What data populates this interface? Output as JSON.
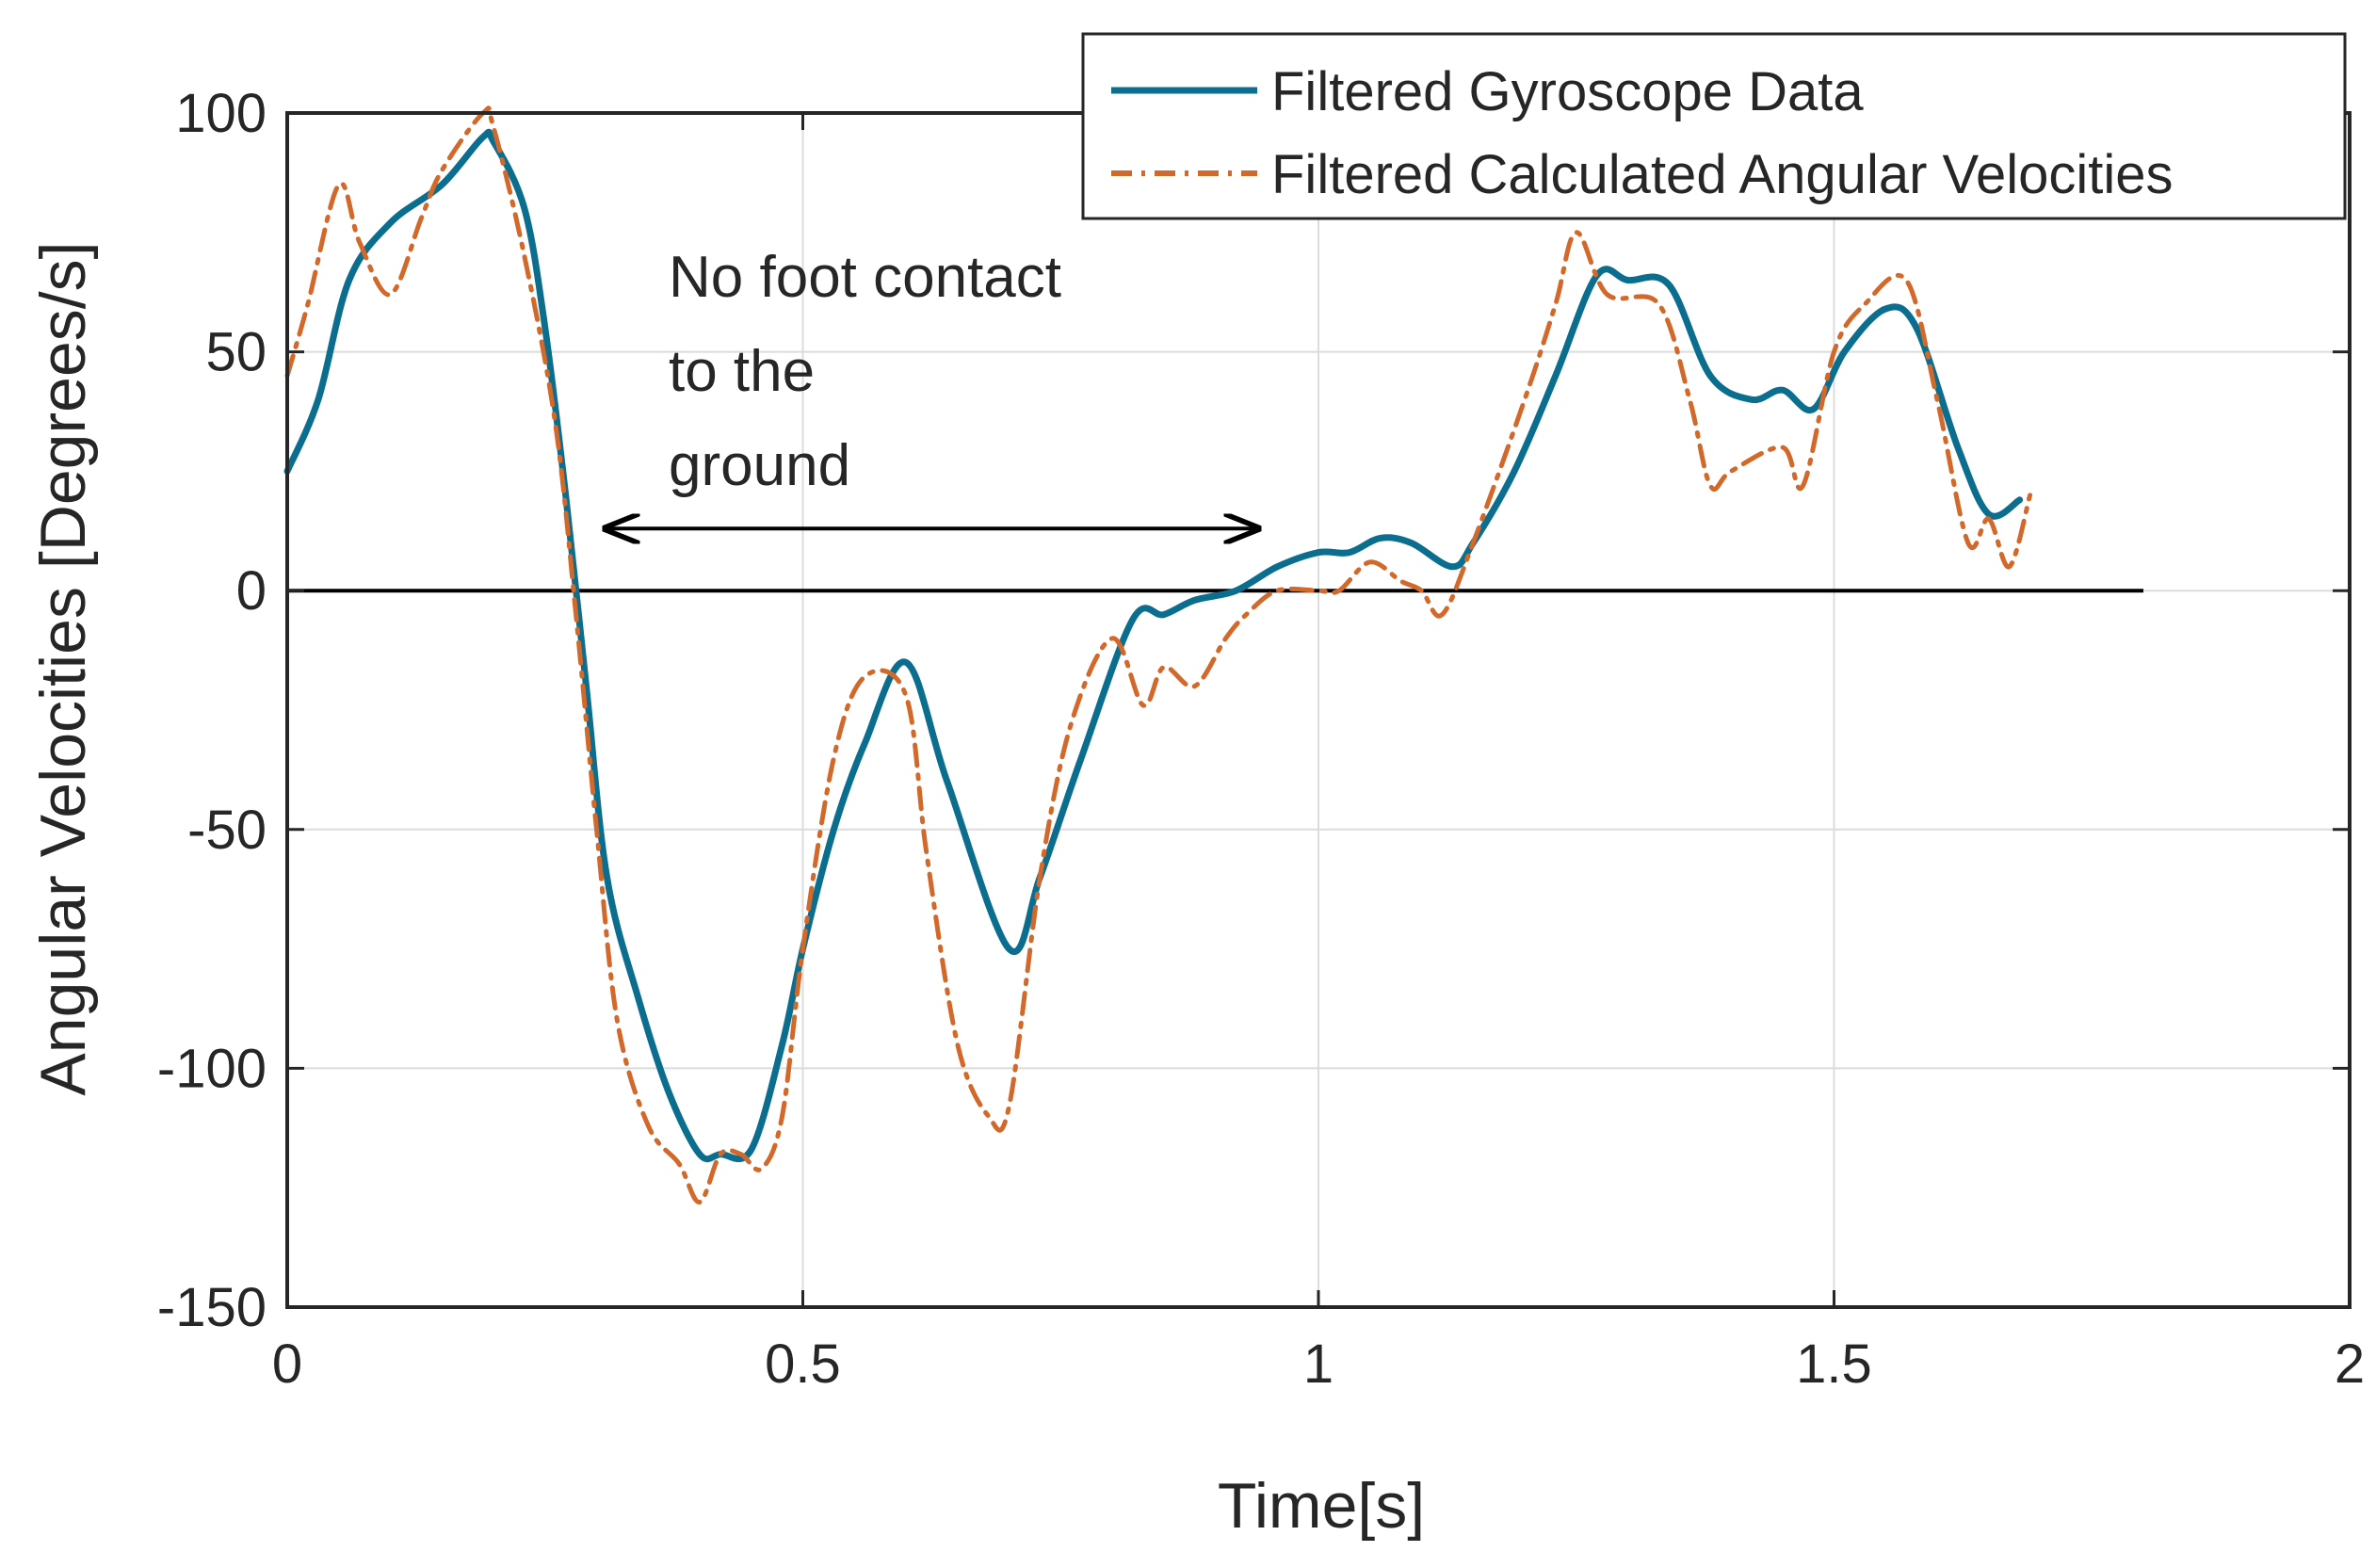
{
  "chart_data": {
    "type": "line",
    "title": "",
    "xlabel": "Time[s]",
    "ylabel": "Angular Velocities [Degrees/s]",
    "xlim": [
      0,
      2
    ],
    "ylim": [
      -150,
      100
    ],
    "xticks": [
      0,
      0.5,
      1,
      1.5,
      2
    ],
    "xtick_labels": [
      "0",
      "0.5",
      "1",
      "1.5",
      "2"
    ],
    "yticks": [
      -150,
      -100,
      -50,
      0,
      50,
      100
    ],
    "ytick_labels": [
      "-150",
      "-100",
      "-50",
      "0",
      "50",
      "100"
    ],
    "grid": true,
    "legend_position": "top-right",
    "zero_line": {
      "y": 0,
      "x_start": 0,
      "x_end": 1.8
    },
    "series": [
      {
        "name": "Filtered Gyroscope Data",
        "style": "solid",
        "color": "#0b6e8e",
        "x": [
          0,
          0.03,
          0.06,
          0.1,
          0.15,
          0.19,
          0.2,
          0.23,
          0.25,
          0.27,
          0.29,
          0.31,
          0.34,
          0.37,
          0.4,
          0.42,
          0.45,
          0.48,
          0.5,
          0.53,
          0.56,
          0.6,
          0.64,
          0.7,
          0.73,
          0.77,
          0.82,
          0.85,
          0.88,
          0.92,
          0.96,
          1.0,
          1.03,
          1.06,
          1.09,
          1.13,
          1.15,
          1.19,
          1.23,
          1.27,
          1.3,
          1.34,
          1.38,
          1.42,
          1.45,
          1.48,
          1.51,
          1.55,
          1.58,
          1.62,
          1.65,
          1.68
        ],
        "y": [
          25,
          40,
          65,
          77,
          85,
          95,
          94,
          80,
          55,
          20,
          -20,
          -60,
          -85,
          -105,
          -118,
          -118,
          -117,
          -95,
          -75,
          -50,
          -32,
          -15,
          -40,
          -75,
          -60,
          -35,
          -6,
          -5,
          -2,
          0,
          5,
          8,
          8,
          11,
          10,
          5,
          10,
          25,
          45,
          66,
          65,
          64,
          45,
          40,
          42,
          38,
          50,
          59,
          55,
          30,
          16,
          19
        ]
      },
      {
        "name": "Filtered Calculated Angular Velocities",
        "style": "dashdot",
        "color": "#d2692a",
        "x": [
          0,
          0.02,
          0.05,
          0.07,
          0.1,
          0.13,
          0.15,
          0.19,
          0.2,
          0.23,
          0.26,
          0.28,
          0.3,
          0.32,
          0.35,
          0.38,
          0.4,
          0.42,
          0.44,
          0.46,
          0.48,
          0.5,
          0.53,
          0.56,
          0.6,
          0.62,
          0.65,
          0.68,
          0.7,
          0.73,
          0.76,
          0.8,
          0.83,
          0.85,
          0.88,
          0.91,
          0.93,
          0.96,
          1.0,
          1.02,
          1.05,
          1.08,
          1.1,
          1.12,
          1.15,
          1.2,
          1.23,
          1.25,
          1.28,
          1.33,
          1.36,
          1.38,
          1.4,
          1.45,
          1.47,
          1.5,
          1.53,
          1.57,
          1.6,
          1.63,
          1.65,
          1.67,
          1.69
        ],
        "y": [
          45,
          60,
          85,
          73,
          62,
          78,
          88,
          100,
          97,
          70,
          35,
          -5,
          -50,
          -90,
          -112,
          -120,
          -128,
          -118,
          -118,
          -121,
          -110,
          -75,
          -35,
          -18,
          -22,
          -55,
          -95,
          -110,
          -108,
          -60,
          -28,
          -10,
          -24,
          -16,
          -20,
          -10,
          -5,
          0,
          0,
          0,
          6,
          2,
          0,
          -5,
          10,
          40,
          60,
          75,
          62,
          60,
          40,
          22,
          25,
          30,
          22,
          50,
          60,
          65,
          40,
          10,
          15,
          5,
          20
        ]
      }
    ],
    "annotation": {
      "lines": [
        "No foot contact",
        "to the",
        "ground"
      ],
      "arrow_x_start": 0.3,
      "arrow_x_end": 0.95,
      "arrow_y": 13
    }
  }
}
